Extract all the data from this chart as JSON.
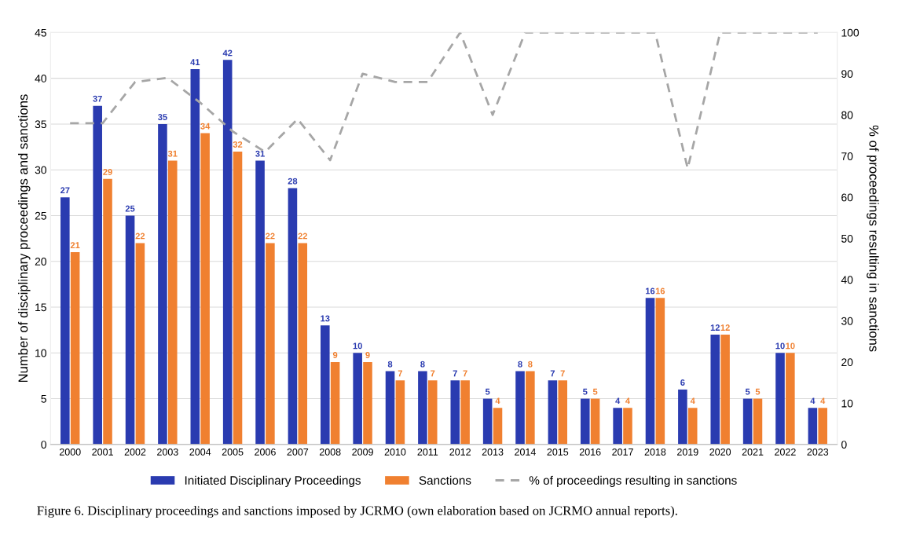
{
  "chart_data": {
    "type": "bar",
    "categories": [
      "2000",
      "2001",
      "2002",
      "2003",
      "2004",
      "2005",
      "2006",
      "2007",
      "2008",
      "2009",
      "2010",
      "2011",
      "2012",
      "2013",
      "2014",
      "2015",
      "2016",
      "2017",
      "2018",
      "2019",
      "2020",
      "2021",
      "2022",
      "2023"
    ],
    "series": [
      {
        "name": "Initiated Disciplinary Proceedings",
        "color": "#2a3bb0",
        "values": [
          27,
          37,
          25,
          35,
          41,
          42,
          31,
          28,
          13,
          10,
          8,
          8,
          7,
          5,
          8,
          7,
          5,
          4,
          16,
          6,
          12,
          5,
          10,
          4
        ],
        "value_labels": [
          "27",
          "37",
          "25",
          "35",
          "41",
          "42",
          "31",
          "28",
          "13",
          "10",
          "8",
          "8",
          "7",
          "5",
          "8",
          "7",
          "5",
          "4",
          "16",
          "6",
          "12",
          "5",
          "10",
          "4"
        ]
      },
      {
        "name": "Sanctions",
        "color": "#f08030",
        "values": [
          21,
          29,
          22,
          31,
          34,
          32,
          22,
          22,
          9,
          9,
          7,
          7,
          7,
          4,
          8,
          7,
          5,
          4,
          16,
          4,
          12,
          5,
          10,
          4
        ],
        "value_labels": [
          "21",
          "29",
          "22",
          "31",
          "34",
          "32",
          "22",
          "22",
          "9",
          "9",
          "7",
          "7",
          "7",
          "4",
          "8",
          "7",
          "5",
          "4",
          "16",
          "4",
          "12",
          "5",
          "10",
          "4"
        ]
      },
      {
        "name": "% of proceedings resulting in sanctions",
        "type": "line",
        "axis": "y2",
        "line_style": "dashed",
        "color": "#a6a6a6",
        "values": [
          78,
          78,
          88,
          89,
          83,
          76,
          71,
          79,
          69,
          90,
          88,
          88,
          100,
          80,
          100,
          100,
          100,
          100,
          100,
          67,
          100,
          100,
          100,
          100
        ]
      }
    ],
    "ylabel": "Number of disciplinary proceedings and sanctions",
    "y2label": "% of proceedings resulting in sanctions",
    "ylim": [
      0,
      45
    ],
    "yticks": [
      0,
      5,
      10,
      15,
      20,
      25,
      30,
      35,
      40,
      45
    ],
    "y2lim": [
      0,
      100
    ],
    "y2ticks": [
      0,
      10,
      20,
      30,
      40,
      50,
      60,
      70,
      80,
      90,
      100
    ],
    "grid": "y",
    "legend": "bottom",
    "marker": "none",
    "annotations": [
      "Figure 6. Disciplinary proceedings and sanctions imposed by JCRMO (own elaboration based on JCRMO annual reports)."
    ]
  }
}
